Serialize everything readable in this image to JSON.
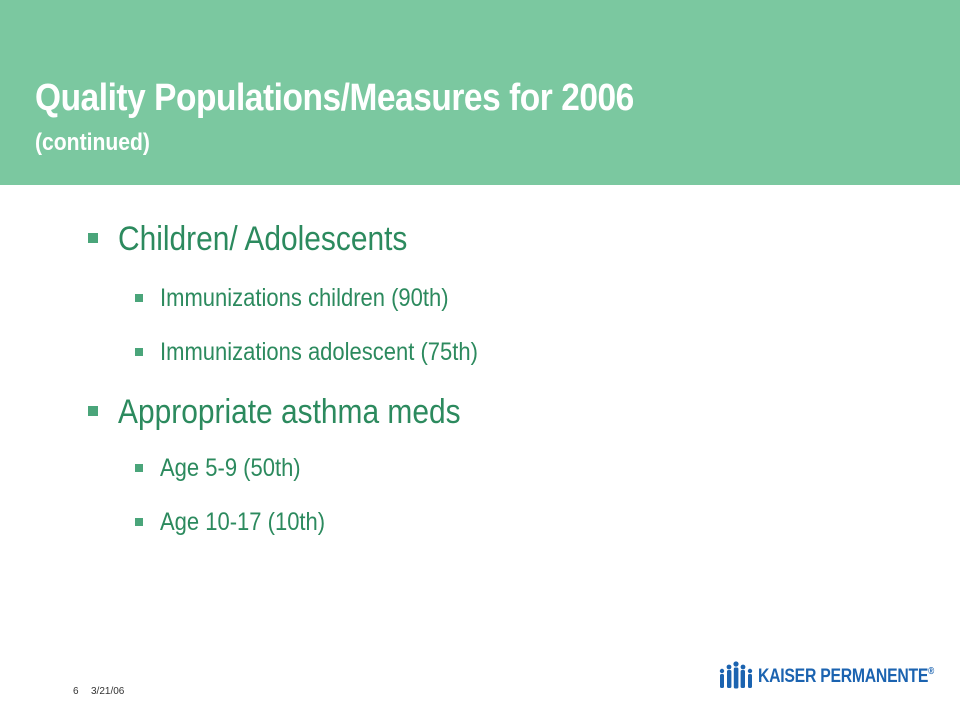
{
  "slide": {
    "title": "Quality Populations/Measures for 2006",
    "subtitle": "(continued)",
    "items": [
      {
        "level": 1,
        "text": "Children/ Adolescents"
      },
      {
        "level": 2,
        "text": "Immunizations children (90th)"
      },
      {
        "level": 2,
        "text": "Immunizations adolescent (75th)"
      },
      {
        "level": 1,
        "text": "Appropriate asthma meds"
      },
      {
        "level": 2,
        "text": "Age 5-9 (50th)"
      },
      {
        "level": 2,
        "text": "Age 10-17 (10th)"
      }
    ]
  },
  "footer": {
    "page_number": "6",
    "date": "3/21/06",
    "logo_text": "KAISER PERMANENTE",
    "logo_mark": "®"
  },
  "colors": {
    "header_bg": "#7bc8a0",
    "bullet_text": "#2c8a5e",
    "logo_blue": "#1b63b0"
  }
}
